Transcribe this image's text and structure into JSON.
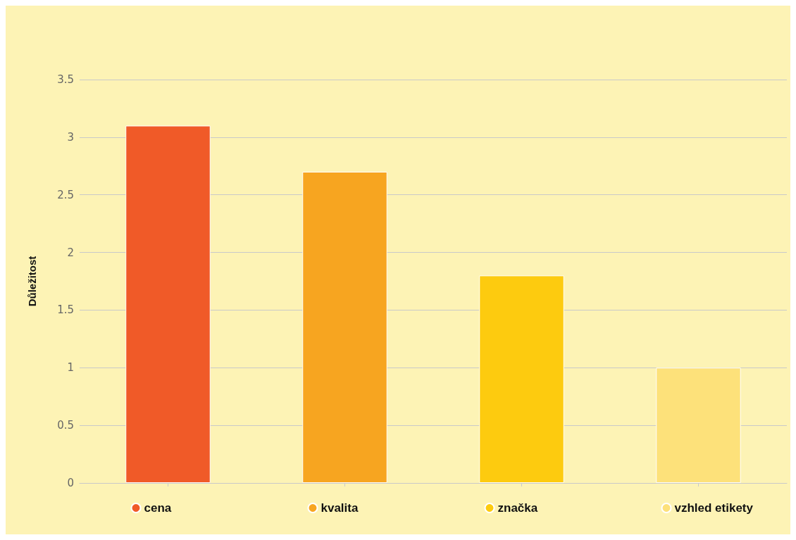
{
  "chart_data": {
    "type": "bar",
    "ylabel": "Důležitost",
    "categories": [
      null,
      null,
      null,
      null
    ],
    "series": [
      {
        "name": "cena",
        "color": "#f05a28",
        "values": [
          3.1,
          null,
          null,
          null
        ]
      },
      {
        "name": "kvalita",
        "color": "#f7a520",
        "values": [
          null,
          2.7,
          null,
          null
        ]
      },
      {
        "name": "značka",
        "color": "#fdcb0f",
        "values": [
          null,
          null,
          1.8,
          null
        ]
      },
      {
        "name": "vzhled etikety",
        "color": "#fde17a",
        "values": [
          null,
          null,
          null,
          1.0
        ]
      }
    ],
    "ylim": [
      0,
      3.5
    ],
    "yticks": [
      0,
      0.5,
      1,
      1.5,
      2,
      2.5,
      3,
      3.5
    ],
    "grid": "y",
    "legend": "bottom"
  }
}
